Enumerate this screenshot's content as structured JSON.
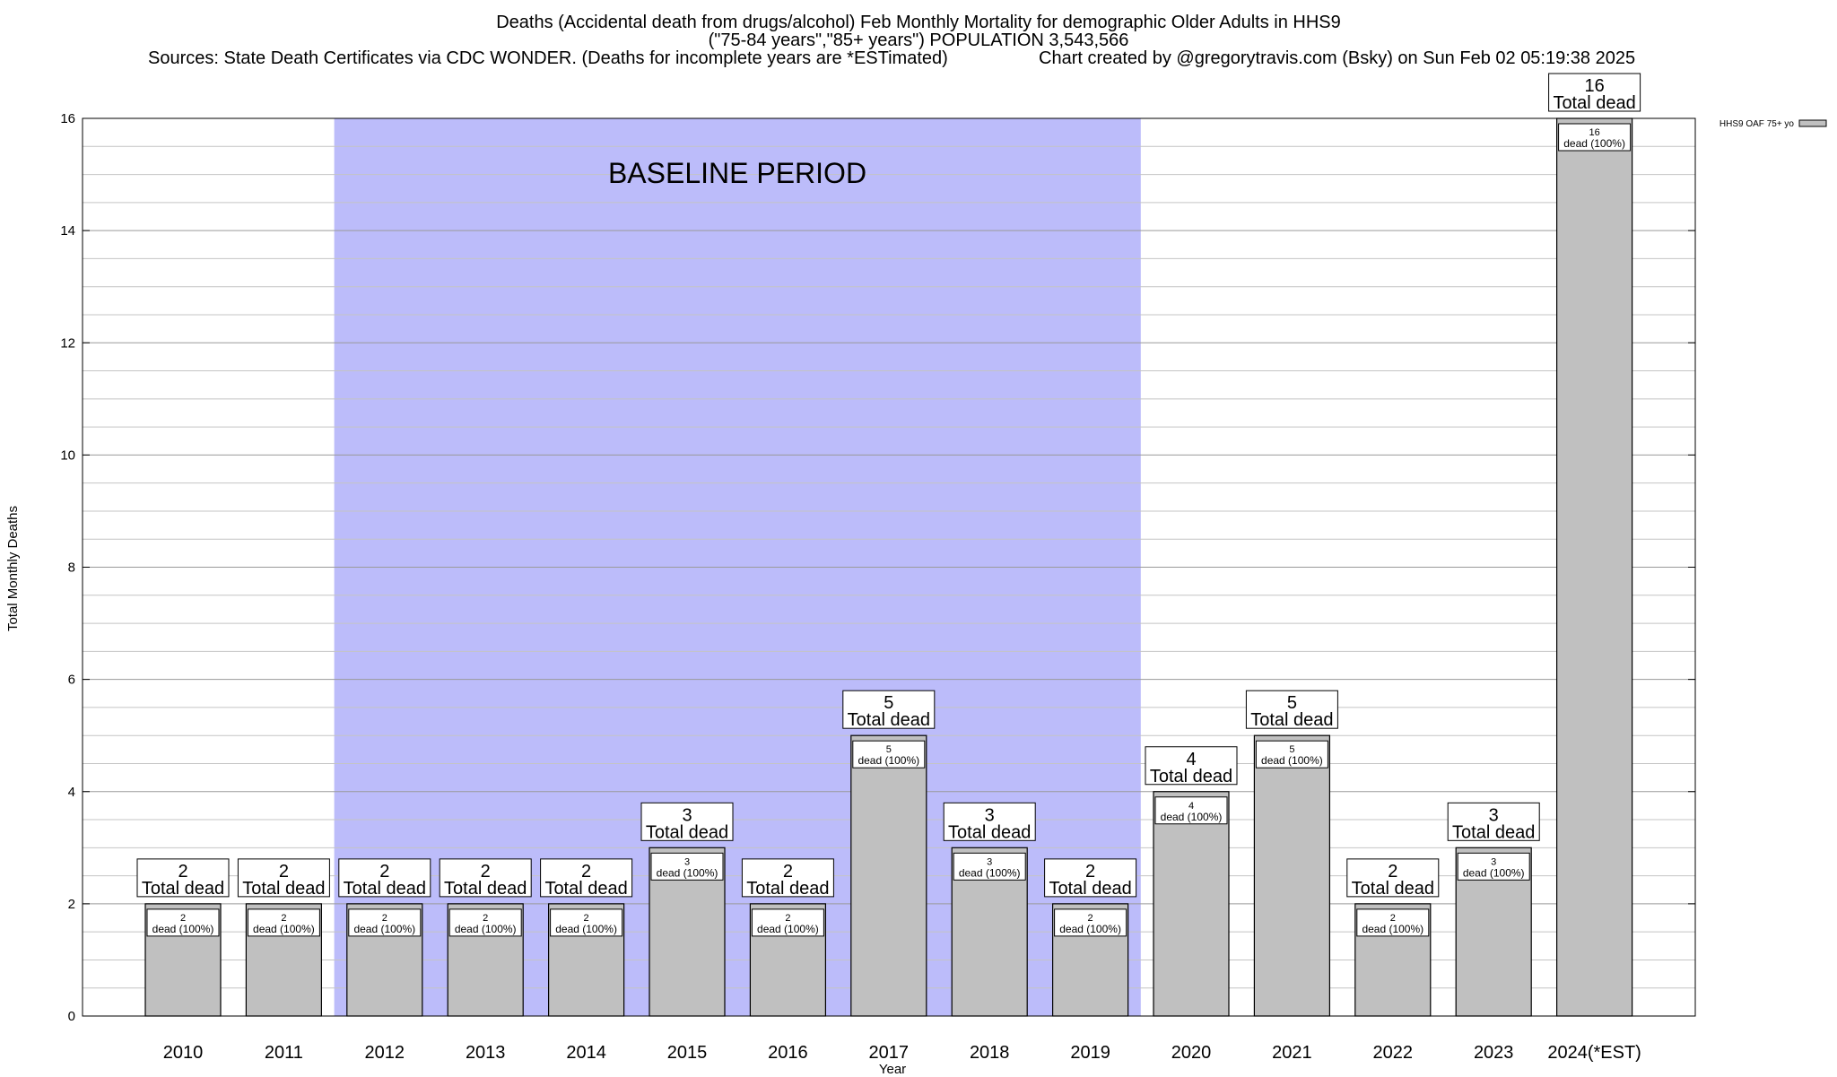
{
  "chart_data": {
    "type": "bar",
    "title_line1": "Deaths (Accidental death from drugs/alcohol) Feb Monthly Mortality for demographic Older Adults in HHS9",
    "title_line2": "(\"75-84 years\",\"85+ years\") POPULATION 3,543,566",
    "sources": "Sources: State Death Certificates via CDC WONDER. (Deaths for incomplete years are *ESTimated)",
    "credit": "Chart created by @gregorytravis.com (Bsky) on Sun Feb 02 05:19:38 2025",
    "xlabel": "Year",
    "ylabel": "Total Monthly Deaths",
    "ylim": [
      0,
      16
    ],
    "yticks": [
      0,
      2,
      4,
      6,
      8,
      10,
      12,
      14,
      16
    ],
    "categories": [
      "2010",
      "2011",
      "2012",
      "2013",
      "2014",
      "2015",
      "2016",
      "2017",
      "2018",
      "2019",
      "2020",
      "2021",
      "2022",
      "2023",
      "2024(*EST)"
    ],
    "series": [
      {
        "name": "HHS9 OAF 75+ yo",
        "values": [
          2,
          2,
          2,
          2,
          2,
          3,
          2,
          5,
          3,
          2,
          4,
          5,
          2,
          3,
          16
        ]
      }
    ],
    "total_label_text": "Total dead",
    "inner_label_text": "dead (100%)",
    "baseline": {
      "label": "BASELINE PERIOD",
      "start": "2012",
      "end": "2019",
      "color": "#bcbcfa"
    },
    "bar_color": "#c0c0c0",
    "grid": true,
    "legend_position": "top-right"
  }
}
